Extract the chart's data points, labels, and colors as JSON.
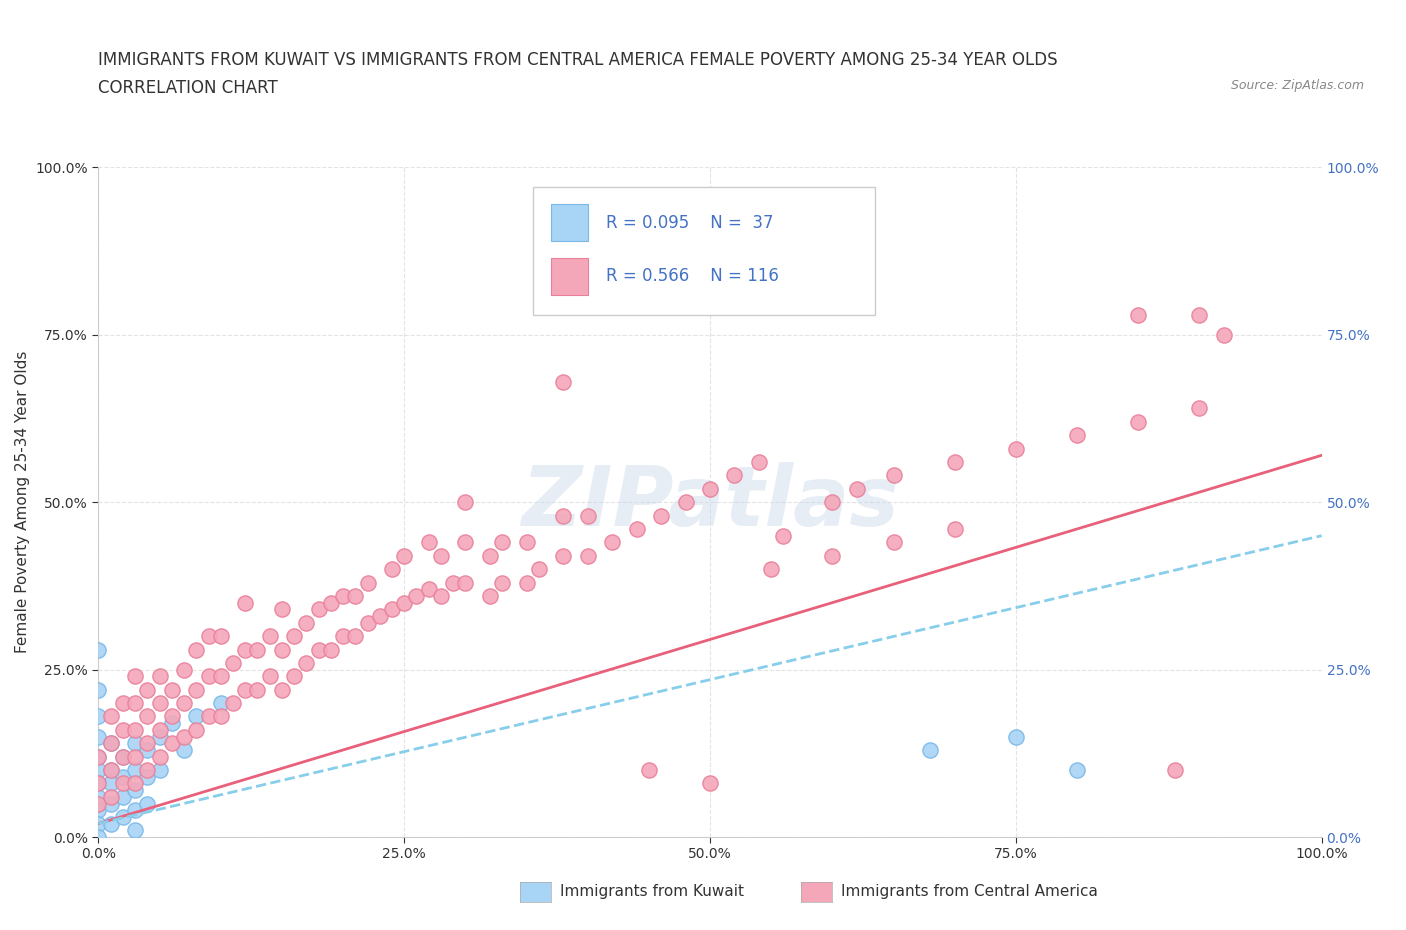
{
  "title_line1": "IMMIGRANTS FROM KUWAIT VS IMMIGRANTS FROM CENTRAL AMERICA FEMALE POVERTY AMONG 25-34 YEAR OLDS",
  "title_line2": "CORRELATION CHART",
  "source_text": "Source: ZipAtlas.com",
  "ylabel": "Female Poverty Among 25-34 Year Olds",
  "xlim": [
    0,
    1.0
  ],
  "ylim": [
    0,
    1.0
  ],
  "xtick_labels": [
    "0.0%",
    "25.0%",
    "50.0%",
    "75.0%",
    "100.0%"
  ],
  "xtick_vals": [
    0.0,
    0.25,
    0.5,
    0.75,
    1.0
  ],
  "ytick_labels": [
    "0.0%",
    "25.0%",
    "50.0%",
    "75.0%",
    "100.0%"
  ],
  "ytick_vals": [
    0.0,
    0.25,
    0.5,
    0.75,
    1.0
  ],
  "right_ytick_labels": [
    "100.0%",
    "75.0%",
    "50.0%",
    "25.0%",
    "0.0%"
  ],
  "watermark": "ZIPatlas",
  "kuwait_color": "#a8d4f5",
  "kuwait_edge_color": "#7ab8e8",
  "central_america_color": "#f4a7b9",
  "central_america_edge_color": "#e8809a",
  "kuwait_line_color": "#87ceeb",
  "central_america_line_color": "#e8607a",
  "background_color": "#ffffff",
  "grid_color": "#dddddd",
  "title_fontsize": 12,
  "axis_label_fontsize": 11,
  "tick_fontsize": 10,
  "right_tick_color": "#4472c4",
  "kuwait_scatter": [
    [
      0.0,
      0.22
    ],
    [
      0.0,
      0.18
    ],
    [
      0.0,
      0.15
    ],
    [
      0.0,
      0.12
    ],
    [
      0.0,
      0.1
    ],
    [
      0.0,
      0.08
    ],
    [
      0.0,
      0.06
    ],
    [
      0.0,
      0.04
    ],
    [
      0.0,
      0.02
    ],
    [
      0.0,
      0.0
    ],
    [
      0.01,
      0.14
    ],
    [
      0.01,
      0.1
    ],
    [
      0.01,
      0.08
    ],
    [
      0.01,
      0.05
    ],
    [
      0.01,
      0.02
    ],
    [
      0.02,
      0.12
    ],
    [
      0.02,
      0.09
    ],
    [
      0.02,
      0.06
    ],
    [
      0.02,
      0.03
    ],
    [
      0.03,
      0.14
    ],
    [
      0.03,
      0.1
    ],
    [
      0.03,
      0.07
    ],
    [
      0.03,
      0.04
    ],
    [
      0.03,
      0.01
    ],
    [
      0.04,
      0.13
    ],
    [
      0.04,
      0.09
    ],
    [
      0.04,
      0.05
    ],
    [
      0.05,
      0.15
    ],
    [
      0.05,
      0.1
    ],
    [
      0.06,
      0.17
    ],
    [
      0.07,
      0.13
    ],
    [
      0.08,
      0.18
    ],
    [
      0.1,
      0.2
    ],
    [
      0.0,
      0.28
    ],
    [
      0.68,
      0.13
    ],
    [
      0.75,
      0.15
    ],
    [
      0.8,
      0.1
    ]
  ],
  "central_america_scatter": [
    [
      0.0,
      0.05
    ],
    [
      0.0,
      0.08
    ],
    [
      0.0,
      0.12
    ],
    [
      0.01,
      0.06
    ],
    [
      0.01,
      0.1
    ],
    [
      0.01,
      0.14
    ],
    [
      0.01,
      0.18
    ],
    [
      0.02,
      0.08
    ],
    [
      0.02,
      0.12
    ],
    [
      0.02,
      0.16
    ],
    [
      0.02,
      0.2
    ],
    [
      0.03,
      0.08
    ],
    [
      0.03,
      0.12
    ],
    [
      0.03,
      0.16
    ],
    [
      0.03,
      0.2
    ],
    [
      0.03,
      0.24
    ],
    [
      0.04,
      0.1
    ],
    [
      0.04,
      0.14
    ],
    [
      0.04,
      0.18
    ],
    [
      0.04,
      0.22
    ],
    [
      0.05,
      0.12
    ],
    [
      0.05,
      0.16
    ],
    [
      0.05,
      0.2
    ],
    [
      0.05,
      0.24
    ],
    [
      0.06,
      0.14
    ],
    [
      0.06,
      0.18
    ],
    [
      0.06,
      0.22
    ],
    [
      0.07,
      0.15
    ],
    [
      0.07,
      0.2
    ],
    [
      0.07,
      0.25
    ],
    [
      0.08,
      0.16
    ],
    [
      0.08,
      0.22
    ],
    [
      0.08,
      0.28
    ],
    [
      0.09,
      0.18
    ],
    [
      0.09,
      0.24
    ],
    [
      0.09,
      0.3
    ],
    [
      0.1,
      0.18
    ],
    [
      0.1,
      0.24
    ],
    [
      0.1,
      0.3
    ],
    [
      0.11,
      0.2
    ],
    [
      0.11,
      0.26
    ],
    [
      0.12,
      0.22
    ],
    [
      0.12,
      0.28
    ],
    [
      0.12,
      0.35
    ],
    [
      0.13,
      0.22
    ],
    [
      0.13,
      0.28
    ],
    [
      0.14,
      0.24
    ],
    [
      0.14,
      0.3
    ],
    [
      0.15,
      0.22
    ],
    [
      0.15,
      0.28
    ],
    [
      0.15,
      0.34
    ],
    [
      0.16,
      0.24
    ],
    [
      0.16,
      0.3
    ],
    [
      0.17,
      0.26
    ],
    [
      0.17,
      0.32
    ],
    [
      0.18,
      0.28
    ],
    [
      0.18,
      0.34
    ],
    [
      0.19,
      0.28
    ],
    [
      0.19,
      0.35
    ],
    [
      0.2,
      0.3
    ],
    [
      0.2,
      0.36
    ],
    [
      0.21,
      0.3
    ],
    [
      0.21,
      0.36
    ],
    [
      0.22,
      0.32
    ],
    [
      0.22,
      0.38
    ],
    [
      0.23,
      0.33
    ],
    [
      0.24,
      0.34
    ],
    [
      0.24,
      0.4
    ],
    [
      0.25,
      0.35
    ],
    [
      0.25,
      0.42
    ],
    [
      0.26,
      0.36
    ],
    [
      0.27,
      0.37
    ],
    [
      0.27,
      0.44
    ],
    [
      0.28,
      0.36
    ],
    [
      0.28,
      0.42
    ],
    [
      0.29,
      0.38
    ],
    [
      0.3,
      0.38
    ],
    [
      0.3,
      0.44
    ],
    [
      0.32,
      0.36
    ],
    [
      0.32,
      0.42
    ],
    [
      0.33,
      0.38
    ],
    [
      0.33,
      0.44
    ],
    [
      0.35,
      0.38
    ],
    [
      0.35,
      0.44
    ],
    [
      0.36,
      0.4
    ],
    [
      0.38,
      0.42
    ],
    [
      0.38,
      0.48
    ],
    [
      0.4,
      0.42
    ],
    [
      0.4,
      0.48
    ],
    [
      0.42,
      0.44
    ],
    [
      0.44,
      0.46
    ],
    [
      0.46,
      0.48
    ],
    [
      0.48,
      0.5
    ],
    [
      0.5,
      0.52
    ],
    [
      0.52,
      0.54
    ],
    [
      0.54,
      0.56
    ],
    [
      0.56,
      0.45
    ],
    [
      0.6,
      0.5
    ],
    [
      0.62,
      0.52
    ],
    [
      0.65,
      0.54
    ],
    [
      0.7,
      0.56
    ],
    [
      0.75,
      0.58
    ],
    [
      0.8,
      0.6
    ],
    [
      0.85,
      0.62
    ],
    [
      0.9,
      0.64
    ],
    [
      0.85,
      0.78
    ],
    [
      0.9,
      0.78
    ],
    [
      0.92,
      0.75
    ],
    [
      0.38,
      0.68
    ],
    [
      0.45,
      0.1
    ],
    [
      0.5,
      0.08
    ],
    [
      0.88,
      0.1
    ],
    [
      0.3,
      0.5
    ],
    [
      0.55,
      0.4
    ],
    [
      0.6,
      0.42
    ],
    [
      0.65,
      0.44
    ],
    [
      0.7,
      0.46
    ]
  ],
  "kuwait_line": {
    "x0": 0.0,
    "x1": 1.0,
    "y0": 0.02,
    "y1": 0.45
  },
  "ca_line": {
    "x0": 0.0,
    "x1": 1.0,
    "y0": 0.02,
    "y1": 0.57
  }
}
